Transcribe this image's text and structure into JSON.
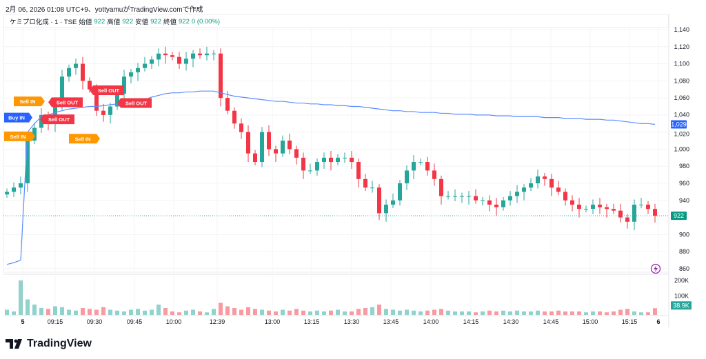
{
  "caption": "2月 06, 2026 01:08 UTC+9、yottyamuがTradingView.comで作成",
  "legend": {
    "symbol": "ケミプロ化成 · 1 · TSE",
    "open_label": "始値",
    "open": "922",
    "high_label": "高値",
    "high": "922",
    "low_label": "安値",
    "low": "922",
    "close_label": "終値",
    "close": "922",
    "change": "0 (0.00%)"
  },
  "logo": "TradingView",
  "colors": {
    "up": "#26a69a",
    "down": "#f23645",
    "vwap": "#5b8cff",
    "buy": "#2962ff",
    "sell_in": "#ff9800",
    "sell_out": "#f23645"
  },
  "chart_data": {
    "type": "candlestick",
    "closes": [
      950,
      955,
      960,
      1010,
      1025,
      1040,
      1030,
      1050,
      1085,
      1095,
      1100,
      1080,
      1070,
      1045,
      1040,
      1050,
      1065,
      1085,
      1090,
      1095,
      1100,
      1105,
      1112,
      1110,
      1108,
      1100,
      1106,
      1112,
      1110,
      1112,
      1112,
      1060,
      1045,
      1030,
      1020,
      995,
      985,
      1020,
      1000,
      995,
      1010,
      1000,
      990,
      975,
      975,
      985,
      990,
      985,
      990,
      990,
      985,
      965,
      955,
      955,
      925,
      935,
      940,
      960,
      975,
      985,
      985,
      975,
      965,
      945,
      945,
      945,
      945,
      945,
      940,
      940,
      935,
      932,
      940,
      945,
      950,
      955,
      960,
      968,
      965,
      955,
      950,
      940,
      935,
      930,
      930,
      935,
      932,
      930,
      928,
      920,
      915,
      935,
      935,
      930,
      922
    ],
    "volumes_k": [
      30,
      20,
      200,
      90,
      60,
      40,
      35,
      50,
      45,
      30,
      25,
      40,
      35,
      30,
      45,
      30,
      25,
      20,
      30,
      35,
      25,
      30,
      60,
      40,
      20,
      15,
      25,
      30,
      20,
      15,
      35,
      70,
      50,
      40,
      30,
      45,
      35,
      30,
      25,
      20,
      30,
      25,
      35,
      25,
      20,
      25,
      20,
      25,
      30,
      20,
      20,
      35,
      40,
      45,
      60,
      35,
      30,
      25,
      30,
      25,
      20,
      25,
      30,
      35,
      25,
      20,
      20,
      20,
      15,
      20,
      25,
      20,
      25,
      20,
      25,
      20,
      20,
      25,
      20,
      20,
      25,
      20,
      20,
      20,
      15,
      20,
      20,
      15,
      20,
      30,
      35,
      20,
      15,
      15,
      39
    ],
    "vwap": [
      865,
      867,
      870,
      1020,
      1030,
      1038,
      1040,
      1043,
      1045,
      1047,
      1048,
      1049,
      1050,
      1050,
      1051,
      1052,
      1053,
      1054,
      1055,
      1056,
      1058,
      1061,
      1063,
      1065,
      1066,
      1066,
      1067,
      1067,
      1068,
      1068,
      1068,
      1066,
      1064,
      1062,
      1061,
      1060,
      1059,
      1058,
      1057,
      1056,
      1056,
      1055,
      1054,
      1054,
      1053,
      1053,
      1052,
      1052,
      1051,
      1051,
      1050,
      1050,
      1049,
      1048,
      1047,
      1046,
      1045,
      1045,
      1044,
      1044,
      1043,
      1043,
      1043,
      1042,
      1042,
      1041,
      1041,
      1041,
      1040,
      1040,
      1040,
      1039,
      1039,
      1039,
      1038,
      1038,
      1038,
      1038,
      1037,
      1037,
      1037,
      1036,
      1036,
      1036,
      1035,
      1035,
      1035,
      1034,
      1034,
      1033,
      1032,
      1031,
      1030,
      1030,
      1029
    ],
    "yaxis": {
      "ticks": [
        1140,
        1120,
        1100,
        1080,
        1060,
        1040,
        1020,
        1000,
        980,
        960,
        940,
        900,
        880,
        860
      ],
      "labels": [
        "1,140",
        "1,120",
        "1,100",
        "1,080",
        "1,060",
        "1,040",
        "1,020",
        "1,000",
        "980",
        "960",
        "940",
        "900",
        "880",
        "860"
      ],
      "range": [
        860,
        1140
      ]
    },
    "volume_axis": {
      "labels": [
        "200K",
        "100K"
      ],
      "values": [
        200,
        100
      ]
    },
    "xaxis": {
      "labels": [
        "5",
        "09:15",
        "09:30",
        "09:45",
        "10:00",
        "12:39",
        "13:00",
        "13:15",
        "13:30",
        "13:45",
        "14:00",
        "14:15",
        "14:30",
        "14:45",
        "15:00",
        "15:15",
        "6"
      ],
      "positions": [
        2.3,
        7,
        12.7,
        18.5,
        24.2,
        30.5,
        38.5,
        44.2,
        50,
        55.7,
        61.5,
        67.3,
        73.1,
        78.9,
        84.6,
        90.3,
        94.5
      ]
    },
    "last_price": {
      "label": "922",
      "value": 922
    },
    "vwap_last": {
      "label": "1,029",
      "value": 1029
    },
    "volume_last": {
      "label": "38.9K",
      "value": 38.9
    },
    "signals": [
      {
        "label": "Sell IN",
        "type": "sell_in",
        "index": 2.3,
        "price": 1015
      },
      {
        "label": "Buy IN",
        "type": "buy",
        "index": 2.3,
        "price": 1037
      },
      {
        "label": "Sell OUT",
        "type": "sell_out",
        "index": 6,
        "price": 1055
      },
      {
        "label": "Sell IN",
        "type": "sell_in",
        "index": 5.5,
        "price": 1056
      },
      {
        "label": "Sell OUT",
        "type": "sell_out",
        "index": 4.8,
        "price": 1035
      },
      {
        "label": "Sell OUT",
        "type": "sell_out",
        "index": 12,
        "price": 1069
      },
      {
        "label": "Sell IN",
        "type": "sell_in",
        "index": 13.5,
        "price": 1051
      },
      {
        "label": "Sell OUT",
        "type": "sell_out",
        "index": 16,
        "price": 1054
      }
    ]
  }
}
